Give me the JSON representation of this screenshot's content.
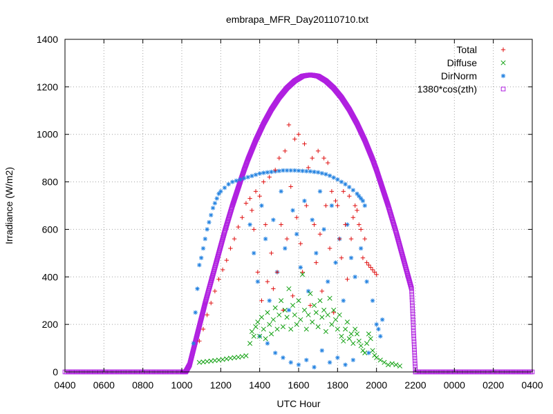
{
  "chart_data": {
    "type": "scatter",
    "title": "embrapa_MFR_Day20110710.txt",
    "xlabel": "UTC Hour",
    "ylabel": "Irradiance (W/m2)",
    "xlim": [
      4,
      28
    ],
    "ylim": [
      0,
      1400
    ],
    "x_tick_labels": [
      "0400",
      "0600",
      "0800",
      "1000",
      "1200",
      "1400",
      "1600",
      "1800",
      "2000",
      "2200",
      "0000",
      "0200",
      "0400"
    ],
    "y_ticks": [
      0,
      200,
      400,
      600,
      800,
      1000,
      1200,
      1400
    ],
    "grid": true,
    "legend_position": "top-right",
    "series": [
      {
        "name": "Total",
        "marker": "plus",
        "color": "#e01010",
        "x": [
          10.9,
          11.1,
          11.3,
          11.5,
          11.7,
          11.9,
          12.1,
          12.3,
          12.5,
          12.7,
          12.9,
          13.1,
          13.3,
          13.5,
          13.6,
          13.7,
          13.8,
          13.9,
          14.0,
          14.1,
          14.2,
          14.3,
          14.4,
          14.5,
          14.6,
          14.7,
          14.8,
          14.9,
          15.0,
          15.1,
          15.2,
          15.3,
          15.4,
          15.5,
          15.6,
          15.7,
          15.8,
          15.9,
          16.0,
          16.1,
          16.2,
          16.3,
          16.4,
          16.5,
          16.6,
          16.7,
          16.8,
          16.9,
          17.0,
          17.1,
          17.2,
          17.3,
          17.4,
          17.5,
          17.6,
          17.7,
          17.8,
          17.9,
          18.0,
          18.1,
          18.2,
          18.3,
          18.4,
          18.5,
          18.6,
          18.7,
          18.8,
          18.9,
          19.0,
          19.1,
          19.2,
          19.3,
          19.4,
          19.5,
          19.6,
          19.7,
          19.8,
          19.9,
          20.0
        ],
        "y": [
          130,
          180,
          240,
          290,
          340,
          390,
          430,
          470,
          520,
          560,
          610,
          650,
          710,
          730,
          680,
          600,
          760,
          420,
          740,
          300,
          800,
          620,
          380,
          820,
          500,
          350,
          850,
          420,
          900,
          620,
          260,
          930,
          560,
          1040,
          780,
          320,
          980,
          650,
          1000,
          540,
          420,
          960,
          700,
          860,
          280,
          900,
          620,
          460,
          930,
          580,
          340,
          900,
          700,
          880,
          520,
          760,
          250,
          720,
          700,
          560,
          480,
          760,
          620,
          390,
          740,
          560,
          650,
          700,
          680,
          620,
          600,
          480,
          560,
          460,
          450,
          440,
          430,
          420,
          410
        ]
      },
      {
        "name": "Diffuse",
        "marker": "cross",
        "color": "#10a010",
        "x": [
          10.9,
          11.1,
          11.3,
          11.5,
          11.7,
          11.9,
          12.1,
          12.3,
          12.5,
          12.7,
          12.9,
          13.1,
          13.3,
          13.5,
          13.6,
          13.7,
          13.8,
          13.9,
          14.0,
          14.1,
          14.2,
          14.3,
          14.4,
          14.5,
          14.6,
          14.7,
          14.8,
          14.9,
          15.0,
          15.1,
          15.2,
          15.3,
          15.4,
          15.5,
          15.6,
          15.7,
          15.8,
          15.9,
          16.0,
          16.1,
          16.2,
          16.3,
          16.4,
          16.5,
          16.6,
          16.7,
          16.8,
          16.9,
          17.0,
          17.1,
          17.2,
          17.3,
          17.4,
          17.5,
          17.6,
          17.7,
          17.8,
          17.9,
          18.0,
          18.1,
          18.2,
          18.3,
          18.4,
          18.5,
          18.6,
          18.7,
          18.8,
          18.9,
          19.0,
          19.1,
          19.2,
          19.3,
          19.4,
          19.5,
          19.6,
          19.7,
          19.8,
          19.9,
          20.0,
          20.2,
          20.4,
          20.6,
          20.8,
          21.0,
          21.2
        ],
        "y": [
          40,
          42,
          44,
          46,
          48,
          50,
          52,
          55,
          58,
          60,
          62,
          65,
          68,
          120,
          170,
          150,
          190,
          210,
          150,
          230,
          180,
          140,
          250,
          200,
          160,
          220,
          270,
          180,
          240,
          300,
          190,
          260,
          230,
          350,
          180,
          280,
          240,
          200,
          300,
          220,
          410,
          260,
          180,
          240,
          330,
          210,
          280,
          250,
          190,
          300,
          230,
          260,
          170,
          240,
          310,
          200,
          260,
          220,
          180,
          240,
          150,
          130,
          180,
          210,
          140,
          160,
          120,
          180,
          160,
          130,
          110,
          90,
          80,
          120,
          160,
          140,
          90,
          70,
          60,
          50,
          40,
          30,
          35,
          30,
          25
        ]
      },
      {
        "name": "DirNorm",
        "marker": "star",
        "color": "#2080e0",
        "x": [
          10.6,
          10.7,
          10.8,
          10.9,
          11.0,
          11.1,
          11.2,
          11.3,
          11.4,
          11.5,
          11.6,
          11.7,
          11.8,
          11.9,
          12.0,
          12.2,
          12.4,
          12.6,
          12.8,
          13.0,
          13.2,
          13.4,
          13.6,
          13.8,
          14.0,
          14.2,
          14.4,
          14.6,
          14.8,
          15.0,
          15.2,
          15.4,
          15.6,
          15.8,
          16.0,
          16.2,
          16.4,
          16.6,
          16.8,
          17.0,
          17.2,
          17.4,
          17.6,
          17.8,
          18.0,
          18.2,
          18.4,
          18.6,
          18.8,
          19.0,
          19.1,
          19.2,
          19.3,
          19.4,
          13.5,
          13.7,
          13.9,
          14.1,
          14.3,
          14.5,
          14.7,
          14.9,
          15.1,
          15.3,
          15.5,
          15.7,
          15.9,
          16.1,
          16.3,
          16.5,
          16.7,
          16.9,
          17.1,
          17.3,
          17.5,
          17.7,
          17.9,
          18.1,
          18.3,
          18.5,
          18.7,
          18.9,
          19.2,
          19.5,
          19.8,
          20.0,
          20.2,
          14.0,
          14.4,
          14.8,
          15.2,
          15.6,
          16.0,
          16.4,
          16.8,
          17.2,
          17.6,
          18.0,
          18.4,
          18.8,
          19.6,
          20.1,
          20.3
        ],
        "y": [
          120,
          250,
          350,
          450,
          480,
          520,
          560,
          600,
          630,
          660,
          690,
          710,
          730,
          750,
          760,
          775,
          790,
          800,
          805,
          810,
          815,
          820,
          825,
          830,
          835,
          838,
          840,
          842,
          844,
          846,
          848,
          848,
          848,
          848,
          847,
          846,
          845,
          844,
          842,
          840,
          836,
          832,
          826,
          818,
          810,
          800,
          790,
          778,
          765,
          750,
          740,
          730,
          720,
          700,
          620,
          500,
          380,
          700,
          560,
          300,
          640,
          420,
          760,
          520,
          260,
          680,
          580,
          440,
          720,
          340,
          640,
          500,
          760,
          600,
          380,
          700,
          460,
          560,
          300,
          620,
          480,
          400,
          520,
          380,
          300,
          200,
          150,
          150,
          120,
          80,
          60,
          40,
          30,
          50,
          20,
          90,
          40,
          60,
          30,
          50,
          80,
          180,
          220
        ]
      },
      {
        "name": "1380*cos(zth)",
        "marker": "square",
        "color": "#b020e0",
        "x": [
          4,
          4.5,
          5,
          5.5,
          6,
          6.5,
          7,
          7.5,
          8,
          8.5,
          9,
          9.5,
          10,
          10.2,
          10.4,
          10.6,
          10.8,
          11.0,
          11.2,
          11.4,
          11.6,
          11.8,
          12.0,
          12.2,
          12.4,
          12.6,
          12.8,
          13.0,
          13.2,
          13.4,
          13.6,
          13.8,
          14.0,
          14.2,
          14.4,
          14.6,
          14.8,
          15.0,
          15.2,
          15.4,
          15.6,
          15.8,
          16.0,
          16.2,
          16.4,
          16.6,
          16.8,
          17.0,
          17.2,
          17.4,
          17.6,
          17.8,
          18.0,
          18.2,
          18.4,
          18.6,
          18.8,
          19.0,
          19.2,
          19.4,
          19.6,
          19.8,
          20.0,
          20.2,
          20.4,
          20.6,
          20.8,
          21.0,
          21.2,
          21.4,
          21.6,
          21.8,
          22.0,
          22.5,
          23,
          23.5,
          24,
          24.5,
          25,
          25.5,
          26,
          26.5,
          27,
          27.5,
          28
        ],
        "y": [
          0,
          0,
          0,
          0,
          0,
          0,
          0,
          0,
          0,
          0,
          0,
          0,
          0,
          0,
          30,
          95,
          160,
          225,
          290,
          350,
          410,
          470,
          530,
          590,
          645,
          700,
          750,
          800,
          850,
          895,
          935,
          975,
          1010,
          1045,
          1075,
          1105,
          1130,
          1155,
          1175,
          1195,
          1210,
          1225,
          1235,
          1245,
          1248,
          1250,
          1248,
          1245,
          1235,
          1225,
          1210,
          1195,
          1175,
          1155,
          1130,
          1105,
          1075,
          1045,
          1010,
          975,
          935,
          895,
          850,
          800,
          750,
          700,
          645,
          590,
          530,
          470,
          410,
          350,
          0,
          0,
          0,
          0,
          0,
          0,
          0,
          0,
          0,
          0,
          0,
          0,
          0
        ]
      }
    ]
  }
}
